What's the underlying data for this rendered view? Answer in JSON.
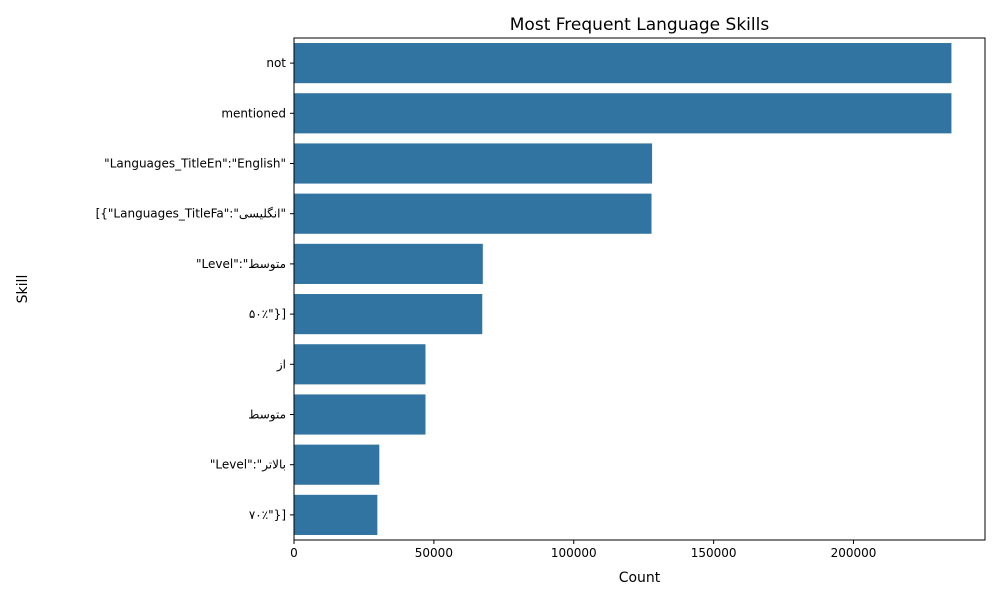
{
  "chart_data": {
    "type": "bar",
    "orientation": "horizontal",
    "title": "Most Frequent Language Skills",
    "xlabel": "Count",
    "ylabel": "Skill",
    "categories": [
      "not",
      "mentioned",
      "\"Languages_TitleEn\":\"English\"",
      "[{\"Languages_TitleFa\":\"انگلیسی\"",
      "\"Level\":\"متوسط",
      "۵۰٪\"}]",
      "از",
      "متوسط",
      "\"Level\":\"بالاتر",
      "۷۰٪\"}]"
    ],
    "values": [
      235000,
      235000,
      128000,
      127800,
      67500,
      67300,
      47000,
      47000,
      30500,
      29800
    ],
    "xlim": [
      0,
      247000
    ],
    "xticks": [
      0,
      50000,
      100000,
      150000,
      200000
    ],
    "xtick_labels": [
      "0",
      "50000",
      "100000",
      "150000",
      "200000"
    ],
    "grid": false,
    "legend": "none",
    "bar_color": "#3274a1"
  }
}
